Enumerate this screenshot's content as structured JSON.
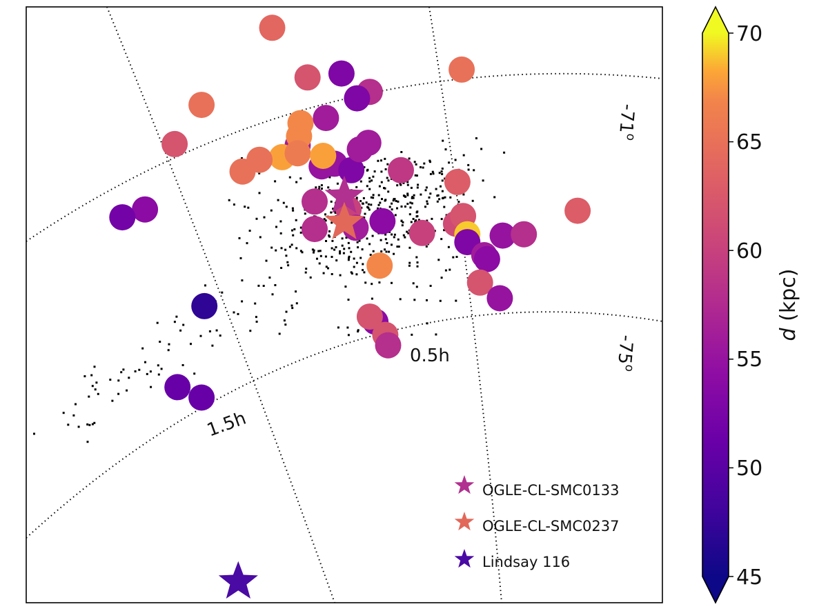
{
  "chart_data": {
    "type": "scatter",
    "projection": "orthographic sky map (RA in hours, Dec in degrees)",
    "grid": true,
    "grid_labels": {
      "dec": [
        "-71°",
        "-75°"
      ],
      "ra": [
        "0.5h",
        "1.5h"
      ]
    },
    "grid_label_parts": {
      "dec_71": "-71",
      "dec_75": "-75",
      "degree_sign": "o",
      "ra_05": "0.5h",
      "ra_15": "1.5h"
    },
    "colorbar": {
      "label": "d (kpc)",
      "label_parts": {
        "symbol": "d",
        "unit": " (kpc)"
      },
      "min": 45,
      "max": 70,
      "ticks": [
        "45",
        "50",
        "55",
        "60",
        "65",
        "70"
      ],
      "colormap": "plasma",
      "extend": "both"
    },
    "legend": {
      "position": "lower-right",
      "entries": [
        {
          "label": "OGLE-CL-SMC0133",
          "color": "#b0318f",
          "marker": "star"
        },
        {
          "label": "OGLE-CL-SMC0237",
          "color": "#e2685a",
          "marker": "star"
        },
        {
          "label": "Lindsay 116",
          "color": "#4a0aa4",
          "marker": "star"
        }
      ]
    },
    "x_range": [
      -0.25,
      2.0
    ],
    "y_range": [
      -1.58,
      0.7
    ],
    "clusters": [
      {
        "x": 0.62,
        "y": 0.62,
        "d": 64
      },
      {
        "x": 0.745,
        "y": 0.43,
        "d": 62
      },
      {
        "x": 0.37,
        "y": 0.325,
        "d": 65
      },
      {
        "x": 0.965,
        "y": 0.375,
        "d": 58
      },
      {
        "x": 0.865,
        "y": 0.445,
        "d": 53
      },
      {
        "x": 0.92,
        "y": 0.35,
        "d": 53
      },
      {
        "x": 0.72,
        "y": 0.255,
        "d": 67
      },
      {
        "x": 0.81,
        "y": 0.275,
        "d": 56
      },
      {
        "x": 0.71,
        "y": 0.17,
        "d": 56
      },
      {
        "x": 0.715,
        "y": 0.205,
        "d": 67
      },
      {
        "x": 0.84,
        "y": 0.1,
        "d": 55
      },
      {
        "x": 0.655,
        "y": 0.125,
        "d": 68
      },
      {
        "x": 0.575,
        "y": 0.115,
        "d": 65
      },
      {
        "x": 0.71,
        "y": 0.14,
        "d": 66
      },
      {
        "x": 0.9,
        "y": 0.075,
        "d": 53
      },
      {
        "x": 0.93,
        "y": 0.155,
        "d": 56
      },
      {
        "x": 0.96,
        "y": 0.18,
        "d": 56
      },
      {
        "x": 0.795,
        "y": 0.09,
        "d": 55
      },
      {
        "x": 0.8,
        "y": 0.13,
        "d": 68
      },
      {
        "x": 0.275,
        "y": 0.175,
        "d": 62
      },
      {
        "x": 0.515,
        "y": 0.07,
        "d": 65
      },
      {
        "x": 0.17,
        "y": -0.075,
        "d": 54
      },
      {
        "x": 0.09,
        "y": -0.105,
        "d": 52
      },
      {
        "x": 0.77,
        "y": -0.045,
        "d": 58
      },
      {
        "x": 0.89,
        "y": -0.075,
        "d": 60
      },
      {
        "x": 1.075,
        "y": 0.075,
        "d": 59
      },
      {
        "x": 1.01,
        "y": -0.12,
        "d": 54
      },
      {
        "x": 0.77,
        "y": -0.15,
        "d": 58
      },
      {
        "x": 0.915,
        "y": -0.145,
        "d": 56
      },
      {
        "x": 1.15,
        "y": -0.165,
        "d": 60
      },
      {
        "x": 1.27,
        "y": -0.13,
        "d": 61
      },
      {
        "x": 1.275,
        "y": 0.03,
        "d": 63
      },
      {
        "x": 1.295,
        "y": -0.1,
        "d": 62
      },
      {
        "x": 1.31,
        "y": -0.17,
        "d": 69
      },
      {
        "x": 1.31,
        "y": -0.2,
        "d": 53
      },
      {
        "x": 1.37,
        "y": -0.25,
        "d": 56
      },
      {
        "x": 1.38,
        "y": -0.265,
        "d": 54
      },
      {
        "x": 1.355,
        "y": -0.355,
        "d": 62
      },
      {
        "x": 1.425,
        "y": -0.415,
        "d": 55
      },
      {
        "x": 1.435,
        "y": -0.175,
        "d": 55
      },
      {
        "x": 1.51,
        "y": -0.17,
        "d": 58
      },
      {
        "x": 1.7,
        "y": -0.08,
        "d": 63
      },
      {
        "x": 1.29,
        "y": 0.46,
        "d": 65
      },
      {
        "x": 1.0,
        "y": -0.29,
        "d": 67
      },
      {
        "x": 0.985,
        "y": -0.505,
        "d": 54
      },
      {
        "x": 0.965,
        "y": -0.485,
        "d": 62
      },
      {
        "x": 1.02,
        "y": -0.555,
        "d": 62
      },
      {
        "x": 1.03,
        "y": -0.595,
        "d": 58
      },
      {
        "x": 0.38,
        "y": -0.445,
        "d": 47
      },
      {
        "x": 0.285,
        "y": -0.755,
        "d": 51
      },
      {
        "x": 0.37,
        "y": -0.795,
        "d": 51
      }
    ],
    "stars": [
      {
        "name": "OGLE-CL-SMC0133",
        "x": 0.875,
        "y": -0.025,
        "color": "#b0318f"
      },
      {
        "name": "OGLE-CL-SMC0237",
        "x": 0.875,
        "y": -0.125,
        "color": "#e2685a"
      },
      {
        "name": "Lindsay 116",
        "x": 0.5,
        "y": -1.5,
        "color": "#4a0aa4"
      }
    ]
  }
}
